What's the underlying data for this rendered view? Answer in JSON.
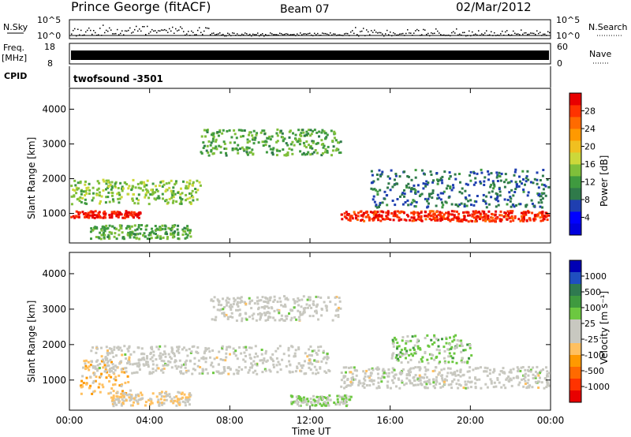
{
  "header": {
    "station": "Prince George (fitACF)",
    "beam": "Beam 07",
    "date": "02/Mar/2012"
  },
  "strips": {
    "nsky_label": "N.Sky",
    "nsky_ticks": [
      "10^5",
      "10^0"
    ],
    "nsearch_label": "N.Search",
    "freq_label": "Freq.",
    "freq_unit": "[MHz]",
    "freq_ticks": [
      "18",
      "8"
    ],
    "nave_label": "Nave",
    "nave_ticks": [
      "60",
      "0"
    ],
    "cpid_label": "CPID",
    "cpid_value": "twofsound -3501"
  },
  "axes": {
    "x_ticks": [
      "00:00",
      "04:00",
      "08:00",
      "12:00",
      "16:00",
      "20:00",
      "00:00"
    ],
    "x_label": "Time UT",
    "y_label": "Slant Range [km]",
    "y_ticks": [
      "1000",
      "2000",
      "3000",
      "4000"
    ],
    "y_range_km": [
      150,
      4600
    ],
    "x_range_hours": [
      0,
      24
    ]
  },
  "colorbars": {
    "power": {
      "label": "Power [dB]",
      "ticks": [
        "28",
        "24",
        "20",
        "16",
        "12",
        "8",
        "4"
      ],
      "colors": [
        "#0000dd",
        "#0000ff",
        "#1f3fb0",
        "#2f7a4a",
        "#3f9a3f",
        "#7fbf3a",
        "#ccd83a",
        "#f0c020",
        "#ff9900",
        "#ff6a00",
        "#ff3300",
        "#e80000"
      ]
    },
    "velocity": {
      "label": "Velocity [m s⁻¹]",
      "ticks": [
        "1000",
        "500",
        "100",
        "25",
        "-25",
        "-100",
        "-500",
        "-1000"
      ],
      "colors": [
        "#0000b4",
        "#1f4fc0",
        "#2f7a50",
        "#3f9a3f",
        "#6cc840",
        "#c8c8c0",
        "#c8c8c0",
        "#ffc060",
        "#ff9900",
        "#ff6a00",
        "#ff3300",
        "#e80000"
      ]
    }
  },
  "chart_data": [
    {
      "type": "heatmap",
      "title": "Power",
      "xlabel": "Time UT",
      "ylabel": "Slant Range [km]",
      "x_range": [
        0,
        24
      ],
      "y_range": [
        150,
        4600
      ],
      "colorbar": "Power [dB]",
      "value_range": [
        0,
        30
      ],
      "features": [
        {
          "t": [
            0,
            3.5
          ],
          "range_km": [
            900,
            1100
          ],
          "value": 28
        },
        {
          "t": [
            0,
            6.5
          ],
          "range_km": [
            1300,
            2000
          ],
          "value": 14
        },
        {
          "t": [
            1,
            6
          ],
          "range_km": [
            300,
            700
          ],
          "value": 12
        },
        {
          "t": [
            6.5,
            13.5
          ],
          "range_km": [
            2700,
            3450
          ],
          "value": 12
        },
        {
          "t": [
            13.5,
            24
          ],
          "range_km": [
            800,
            1100
          ],
          "value": 27
        },
        {
          "t": [
            15,
            24
          ],
          "range_km": [
            1200,
            2300
          ],
          "value": 8
        }
      ]
    },
    {
      "type": "heatmap",
      "title": "Velocity",
      "xlabel": "Time UT",
      "ylabel": "Slant Range [km]",
      "x_range": [
        0,
        24
      ],
      "y_range": [
        150,
        4600
      ],
      "colorbar": "Velocity [m s⁻¹]",
      "value_range": [
        -1000,
        1000
      ],
      "features": [
        {
          "t": [
            0.5,
            3
          ],
          "range_km": [
            600,
            1600
          ],
          "value": -300
        },
        {
          "t": [
            2,
            6
          ],
          "range_km": [
            300,
            700
          ],
          "value": -150
        },
        {
          "t": [
            1,
            13
          ],
          "range_km": [
            1200,
            2000
          ],
          "value": 0
        },
        {
          "t": [
            7,
            13.5
          ],
          "range_km": [
            2700,
            3400
          ],
          "value": 0
        },
        {
          "t": [
            13.5,
            24
          ],
          "range_km": [
            800,
            1400
          ],
          "value": 0
        },
        {
          "t": [
            16,
            20
          ],
          "range_km": [
            1500,
            2300
          ],
          "value": 200
        },
        {
          "t": [
            11,
            14
          ],
          "range_km": [
            300,
            600
          ],
          "value": 150
        }
      ]
    }
  ]
}
